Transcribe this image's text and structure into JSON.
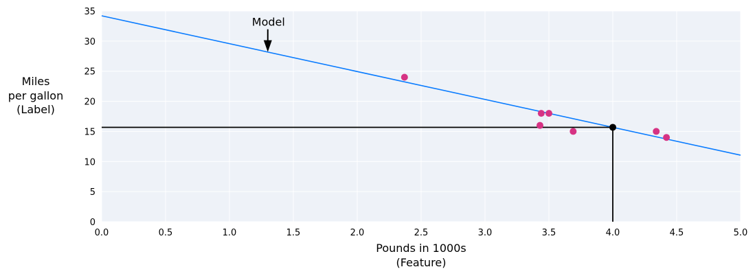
{
  "chart_data": {
    "type": "scatter",
    "xlabel": [
      "Pounds in 1000s",
      "(Feature)"
    ],
    "ylabel": [
      "Miles",
      "per gallon",
      "(Label)"
    ],
    "xlim": [
      0,
      5
    ],
    "ylim": [
      0,
      35
    ],
    "xticks": [
      "0.0",
      "0.5",
      "1.0",
      "1.5",
      "2.0",
      "2.5",
      "3.0",
      "3.5",
      "4.0",
      "4.5",
      "5.0"
    ],
    "yticks": [
      "0",
      "5",
      "10",
      "15",
      "20",
      "25",
      "30",
      "35"
    ],
    "grid": true,
    "points": [
      {
        "x": 2.37,
        "y": 24
      },
      {
        "x": 3.44,
        "y": 18
      },
      {
        "x": 3.5,
        "y": 18
      },
      {
        "x": 3.43,
        "y": 16
      },
      {
        "x": 3.69,
        "y": 15
      },
      {
        "x": 4.34,
        "y": 15
      },
      {
        "x": 4.42,
        "y": 14
      }
    ],
    "model_line": {
      "intercept": 34.2,
      "slope": -4.63
    },
    "prediction": {
      "x": 4.0,
      "y": 15.68
    },
    "annotation": {
      "text": "Model",
      "x": 1.3,
      "y": 28.2
    },
    "colors": {
      "points": "#d63384",
      "line": "#0a7cff",
      "prediction": "#000000",
      "background": "#eef2f8",
      "grid": "#ffffff"
    }
  }
}
